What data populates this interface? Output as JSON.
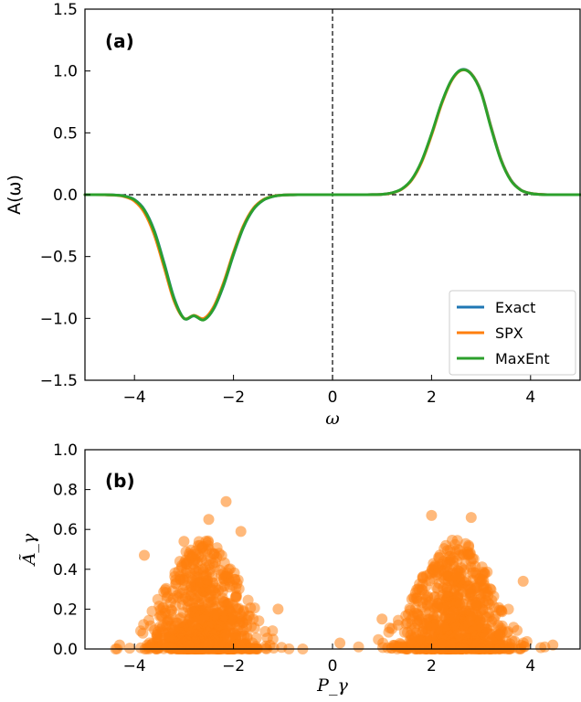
{
  "chart_data": [
    {
      "type": "line",
      "panel_label": "(a)",
      "xlabel": "ω",
      "ylabel": "A(ω)",
      "xlim": [
        -5,
        5
      ],
      "ylim": [
        -1.5,
        1.5
      ],
      "xticks": [
        -4,
        -2,
        0,
        2,
        4
      ],
      "xtick_labels": [
        "−4",
        "−2",
        "0",
        "2",
        "4"
      ],
      "yticks": [
        -1.5,
        -1.0,
        -0.5,
        0.0,
        0.5,
        1.0,
        1.5
      ],
      "ytick_labels": [
        "−1.5",
        "−1.0",
        "−0.5",
        "0.0",
        "0.5",
        "1.0",
        "1.5"
      ],
      "reference_lines": {
        "y": 0,
        "x": 0,
        "style": "dashed",
        "color": "#000000"
      },
      "legend": {
        "position": "lower-right"
      },
      "x": [
        -5.0,
        -4.8,
        -4.6,
        -4.4,
        -4.2,
        -4.0,
        -3.8,
        -3.6,
        -3.4,
        -3.2,
        -3.0,
        -2.8,
        -2.6,
        -2.4,
        -2.2,
        -2.0,
        -1.8,
        -1.6,
        -1.4,
        -1.2,
        -1.0,
        -0.8,
        -0.6,
        -0.4,
        -0.2,
        0.0,
        0.2,
        0.4,
        0.6,
        0.8,
        1.0,
        1.2,
        1.4,
        1.6,
        1.8,
        2.0,
        2.2,
        2.4,
        2.6,
        2.8,
        3.0,
        3.2,
        3.4,
        3.6,
        3.8,
        4.0,
        4.2,
        4.4,
        4.6,
        4.8,
        5.0
      ],
      "series": [
        {
          "name": "Exact",
          "color": "#1f77b4",
          "values": [
            0.0,
            -0.0,
            -0.0,
            -0.003,
            -0.011,
            -0.04,
            -0.121,
            -0.29,
            -0.553,
            -0.835,
            -1.0,
            -0.98,
            -1.01,
            -0.923,
            -0.734,
            -0.486,
            -0.266,
            -0.12,
            -0.045,
            -0.014,
            -0.003,
            -0.001,
            0.0,
            0.0,
            0.0,
            0.0,
            0.0,
            0.0,
            0.0,
            0.001,
            0.003,
            0.014,
            0.045,
            0.12,
            0.266,
            0.486,
            0.734,
            0.923,
            1.01,
            0.98,
            0.835,
            0.553,
            0.29,
            0.121,
            0.04,
            0.011,
            0.003,
            0.0,
            0.0,
            0.0,
            0.0
          ]
        },
        {
          "name": "SPX",
          "color": "#ff7f0e",
          "values": [
            0.0,
            -0.0,
            -0.001,
            -0.004,
            -0.016,
            -0.052,
            -0.145,
            -0.325,
            -0.59,
            -0.86,
            -1.0,
            -0.975,
            -1.0,
            -0.905,
            -0.71,
            -0.465,
            -0.25,
            -0.11,
            -0.04,
            -0.012,
            -0.003,
            -0.001,
            0.0,
            0.0,
            0.0,
            0.0,
            0.0,
            0.0,
            0.0,
            0.001,
            0.003,
            0.014,
            0.044,
            0.118,
            0.262,
            0.48,
            0.728,
            0.918,
            1.005,
            0.978,
            0.83,
            0.548,
            0.286,
            0.119,
            0.039,
            0.011,
            0.003,
            0.0,
            0.0,
            0.0,
            0.0
          ]
        },
        {
          "name": "MaxEnt",
          "color": "#2ca02c",
          "values": [
            0.0,
            -0.0,
            -0.0,
            -0.003,
            -0.012,
            -0.042,
            -0.126,
            -0.298,
            -0.562,
            -0.842,
            -1.0,
            -0.978,
            -1.012,
            -0.92,
            -0.728,
            -0.48,
            -0.262,
            -0.118,
            -0.044,
            -0.014,
            -0.003,
            -0.001,
            0.0,
            0.0,
            0.0,
            0.0,
            0.0,
            0.0,
            0.0,
            0.001,
            0.003,
            0.015,
            0.047,
            0.124,
            0.272,
            0.492,
            0.738,
            0.924,
            1.008,
            0.975,
            0.826,
            0.541,
            0.281,
            0.116,
            0.038,
            0.01,
            0.002,
            0.0,
            0.0,
            0.0,
            0.0
          ]
        }
      ]
    },
    {
      "type": "scatter",
      "panel_label": "(b)",
      "xlabel": "P_γ",
      "ylabel": "Ã_γ",
      "xlim": [
        -5,
        5
      ],
      "ylim": [
        0,
        1.0
      ],
      "xticks": [
        -4,
        -2,
        0,
        2,
        4
      ],
      "xtick_labels": [
        "−4",
        "−2",
        "0",
        "2",
        "4"
      ],
      "yticks": [
        0.0,
        0.2,
        0.4,
        0.6,
        0.8,
        1.0
      ],
      "ytick_labels": [
        "0.0",
        "0.2",
        "0.4",
        "0.6",
        "0.8",
        "1.0"
      ],
      "color": "#ff7f0e",
      "clusters": [
        {
          "center": -2.6,
          "spread": 0.7,
          "max_height": 0.75
        },
        {
          "center": 2.5,
          "spread": 0.7,
          "max_height": 0.68
        }
      ],
      "notable_points": [
        [
          -2.15,
          0.74
        ],
        [
          -2.5,
          0.65
        ],
        [
          -3.0,
          0.54
        ],
        [
          -1.85,
          0.59
        ],
        [
          2.0,
          0.67
        ],
        [
          2.8,
          0.66
        ],
        [
          -3.8,
          0.47
        ],
        [
          3.85,
          0.34
        ],
        [
          -4.3,
          0.02
        ],
        [
          0.15,
          0.03
        ],
        [
          4.45,
          0.02
        ],
        [
          -1.1,
          0.2
        ],
        [
          1.0,
          0.15
        ]
      ]
    }
  ],
  "icons": {
    "legend_swatch_shape": "line"
  }
}
